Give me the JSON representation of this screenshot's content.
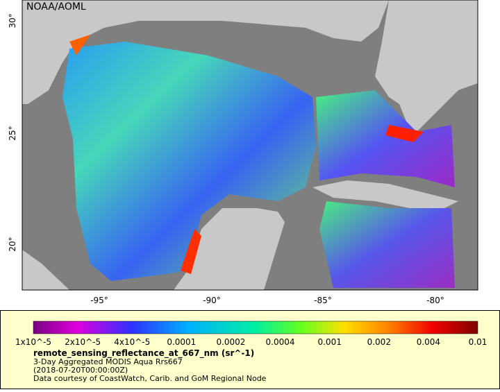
{
  "map": {
    "credit": "NOAA/AOML",
    "lat_labels": [
      "30°",
      "25°",
      "20°"
    ],
    "lon_labels": [
      "-95°",
      "-90°",
      "-85°",
      "-80°"
    ]
  },
  "legend": {
    "ticks": [
      "1x10^-5",
      "2x10^-5",
      "4x10^-5",
      "0.0001",
      "0.0002",
      "0.0004",
      "0.001",
      "0.002",
      "0.004",
      "0.01"
    ],
    "title": "remote_sensing_reflectance_at_667_nm (sr^-1)",
    "lines": [
      "3-Day Aggregated MODIS Aqua Rrs667",
      "(2018-07-20T00:00:00Z)",
      "Data courtesy of CoastWatch, Carib. and GoM Regional Node"
    ]
  }
}
